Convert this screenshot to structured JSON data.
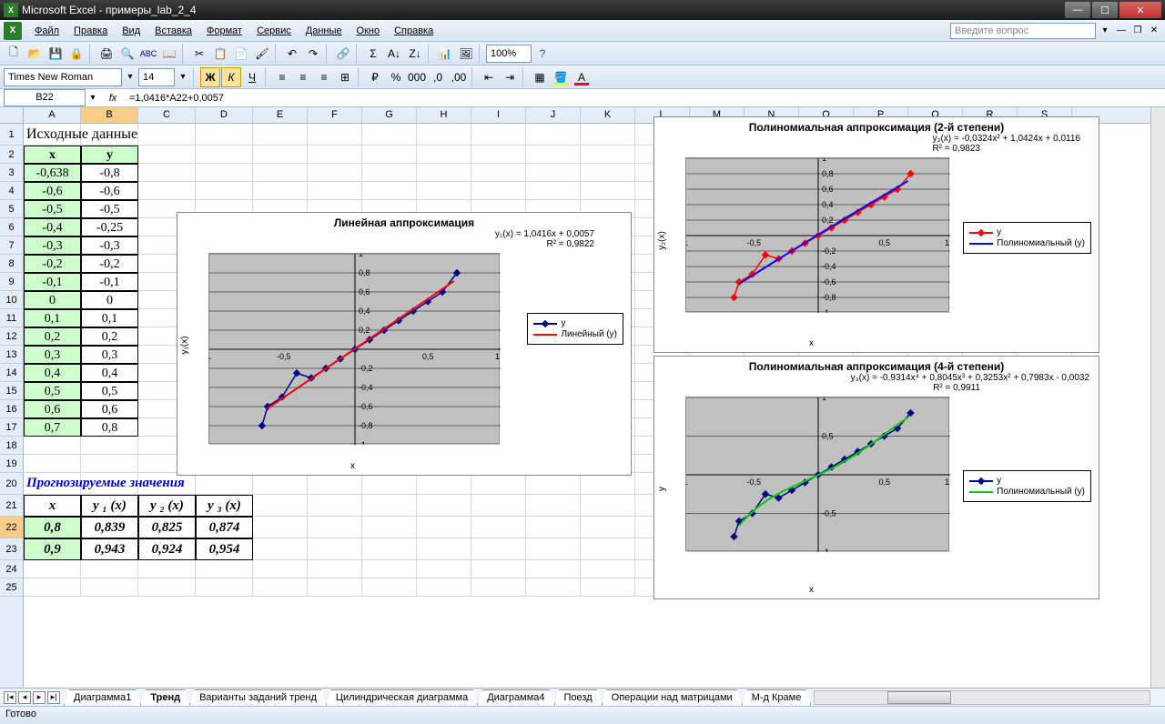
{
  "window": {
    "title": "Microsoft Excel - примеры_lab_2_4"
  },
  "menu": [
    "Файл",
    "Правка",
    "Вид",
    "Вставка",
    "Формат",
    "Сервис",
    "Данные",
    "Окно",
    "Справка"
  ],
  "askbox": "Введите вопрос",
  "font": {
    "name": "Times New Roman",
    "size": "14"
  },
  "zoom": "100%",
  "namebox": "B22",
  "formula": "=1,0416*A22+0,0057",
  "columns": [
    {
      "l": "A",
      "w": 63
    },
    {
      "l": "B",
      "w": 63
    },
    {
      "l": "C",
      "w": 63
    },
    {
      "l": "D",
      "w": 63
    },
    {
      "l": "E",
      "w": 60
    },
    {
      "l": "F",
      "w": 60
    },
    {
      "l": "G",
      "w": 60
    },
    {
      "l": "H",
      "w": 60
    },
    {
      "l": "I",
      "w": 60
    },
    {
      "l": "J",
      "w": 60
    },
    {
      "l": "K",
      "w": 60
    },
    {
      "l": "L",
      "w": 60
    },
    {
      "l": "M",
      "w": 60
    },
    {
      "l": "N",
      "w": 60
    },
    {
      "l": "O",
      "w": 60
    },
    {
      "l": "P",
      "w": 60
    },
    {
      "l": "Q",
      "w": 60
    },
    {
      "l": "R",
      "w": 60
    },
    {
      "l": "S",
      "w": 60
    }
  ],
  "rows": [
    1,
    2,
    3,
    4,
    5,
    6,
    7,
    8,
    9,
    10,
    11,
    12,
    13,
    14,
    15,
    16,
    17,
    18,
    19,
    20,
    21,
    22,
    23,
    24,
    25
  ],
  "heading1": "Исходные данные",
  "data_header": {
    "x": "x",
    "y": "y"
  },
  "data_rows": [
    {
      "x": "-0,638",
      "y": "-0,8"
    },
    {
      "x": "-0,6",
      "y": "-0,6"
    },
    {
      "x": "-0,5",
      "y": "-0,5"
    },
    {
      "x": "-0,4",
      "y": "-0,25"
    },
    {
      "x": "-0,3",
      "y": "-0,3"
    },
    {
      "x": "-0,2",
      "y": "-0,2"
    },
    {
      "x": "-0,1",
      "y": "-0,1"
    },
    {
      "x": "0",
      "y": "0"
    },
    {
      "x": "0,1",
      "y": "0,1"
    },
    {
      "x": "0,2",
      "y": "0,2"
    },
    {
      "x": "0,3",
      "y": "0,3"
    },
    {
      "x": "0,4",
      "y": "0,4"
    },
    {
      "x": "0,5",
      "y": "0,5"
    },
    {
      "x": "0,6",
      "y": "0,6"
    },
    {
      "x": "0,7",
      "y": "0,8"
    }
  ],
  "forecast_title": "Прогнозируемые значения",
  "forecast_header": [
    "x",
    "y ₁ (x)",
    "y ₂ (x)",
    "y ₃ (x)"
  ],
  "forecast_rows": [
    [
      "0,8",
      "0,839",
      "0,825",
      "0,874"
    ],
    [
      "0,9",
      "0,943",
      "0,924",
      "0,954"
    ]
  ],
  "chart1": {
    "title": "Линейная аппроксимация",
    "formula": "y₁(x) = 1,0416x + 0,0057",
    "r2": "R² = 0,9822",
    "xlabel": "x",
    "ylabel": "y₁(x)",
    "legend": [
      "y",
      "Линейный (y)"
    ],
    "series_color": "#00008b",
    "trend_color": "#ff0000",
    "xlim": [
      -1,
      1
    ],
    "ylim": [
      -1,
      1
    ],
    "xticks": [
      -1,
      -0.5,
      0.5,
      1
    ],
    "yticks": [
      -1,
      -0.8,
      -0.6,
      -0.4,
      -0.2,
      0.2,
      0.4,
      0.6,
      0.8,
      1
    ],
    "points": [
      [
        -0.638,
        -0.8
      ],
      [
        -0.6,
        -0.6
      ],
      [
        -0.5,
        -0.5
      ],
      [
        -0.4,
        -0.25
      ],
      [
        -0.3,
        -0.3
      ],
      [
        -0.2,
        -0.2
      ],
      [
        -0.1,
        -0.1
      ],
      [
        0,
        0
      ],
      [
        0.1,
        0.1
      ],
      [
        0.2,
        0.2
      ],
      [
        0.3,
        0.3
      ],
      [
        0.4,
        0.4
      ],
      [
        0.5,
        0.5
      ],
      [
        0.6,
        0.6
      ],
      [
        0.7,
        0.8
      ]
    ],
    "trendline": [
      [
        -0.638,
        -0.659
      ],
      [
        0.7,
        0.735
      ]
    ]
  },
  "chart2": {
    "title": "Полиномиальная аппроксимация (2-й степени)",
    "formula": "y₂(x) = -0,0324x² + 1,0424x + 0,0116",
    "r2": "R² = 0,9823",
    "xlabel": "x",
    "ylabel": "y₂(x)",
    "legend": [
      "y",
      "Полиномиальный (y)"
    ],
    "series_color": "#ff0000",
    "series_marker": "diamond",
    "trend_color": "#0000ff",
    "xlim": [
      -1,
      1
    ],
    "ylim": [
      -1,
      1
    ],
    "xticks": [
      -1,
      -0.5,
      0.5,
      1
    ],
    "yticks": [
      -1,
      -0.8,
      -0.6,
      -0.4,
      -0.2,
      0.2,
      0.4,
      0.6,
      0.8,
      1
    ],
    "points": [
      [
        -0.638,
        -0.8
      ],
      [
        -0.6,
        -0.6
      ],
      [
        -0.5,
        -0.5
      ],
      [
        -0.4,
        -0.25
      ],
      [
        -0.3,
        -0.3
      ],
      [
        -0.2,
        -0.2
      ],
      [
        -0.1,
        -0.1
      ],
      [
        0,
        0
      ],
      [
        0.1,
        0.1
      ],
      [
        0.2,
        0.2
      ],
      [
        0.3,
        0.3
      ],
      [
        0.4,
        0.4
      ],
      [
        0.5,
        0.5
      ],
      [
        0.6,
        0.6
      ],
      [
        0.7,
        0.8
      ]
    ]
  },
  "chart3": {
    "title": "Полиномиальная аппроксимация  (4-й степени)",
    "formula": "y₃(x) = -0,9314x⁴ + 0,8045x³ + 0,3253x² + 0,7983x - 0,0032",
    "r2": "R² = 0,9911",
    "xlabel": "x",
    "ylabel": "y",
    "legend": [
      "y",
      "Полиномиальный (y)"
    ],
    "series_color": "#00008b",
    "trend_color": "#00cc00",
    "xlim": [
      -1,
      1
    ],
    "ylim": [
      -1,
      1
    ],
    "xticks": [
      -1,
      -0.5,
      0.5,
      1
    ],
    "yticks": [
      -1,
      -0.5,
      0.5,
      1
    ],
    "points": [
      [
        -0.638,
        -0.8
      ],
      [
        -0.6,
        -0.6
      ],
      [
        -0.5,
        -0.5
      ],
      [
        -0.4,
        -0.25
      ],
      [
        -0.3,
        -0.3
      ],
      [
        -0.2,
        -0.2
      ],
      [
        -0.1,
        -0.1
      ],
      [
        0,
        0
      ],
      [
        0.1,
        0.1
      ],
      [
        0.2,
        0.2
      ],
      [
        0.3,
        0.3
      ],
      [
        0.4,
        0.4
      ],
      [
        0.5,
        0.5
      ],
      [
        0.6,
        0.6
      ],
      [
        0.7,
        0.8
      ]
    ]
  },
  "tabs": [
    "Диаграмма1",
    "Тренд",
    "Варианты заданий тренд",
    "Цилиндрическая диаграмма",
    "Диаграмма4",
    "Поезд",
    "Операции над матрицами",
    "М-д Краме"
  ],
  "active_tab": "Тренд",
  "status": "Готово"
}
